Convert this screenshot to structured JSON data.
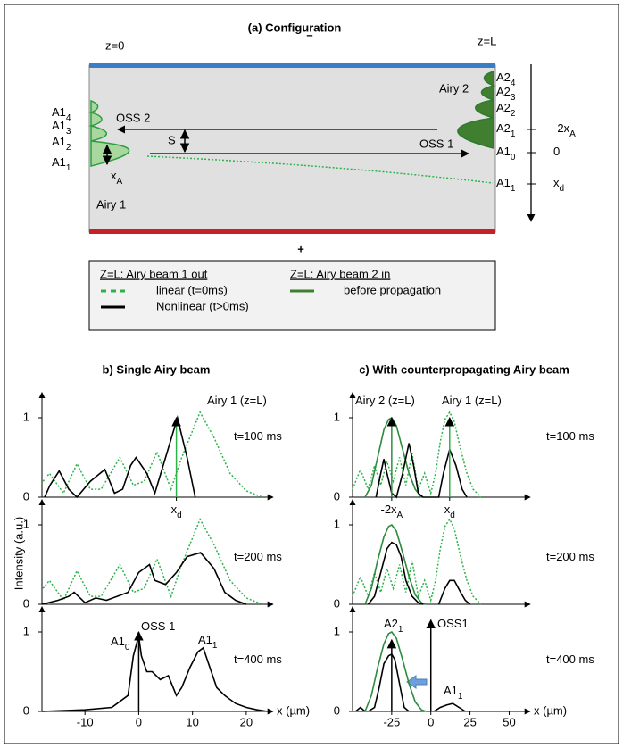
{
  "configuration": {
    "title": "(a)  Configuration",
    "z0": "z=0",
    "zL": "z=L",
    "minus": "–",
    "plus": "+",
    "airy1": "Airy 1",
    "airy2": "Airy 2",
    "oss1": "OSS 1",
    "oss2": "OSS 2",
    "s": "S",
    "xa": {
      "base": "x",
      "sub": "A"
    },
    "left_labels": [
      {
        "base": "A1",
        "sub": "4"
      },
      {
        "base": "A1",
        "sub": "3"
      },
      {
        "base": "A1",
        "sub": "2"
      },
      {
        "base": "A1",
        "sub": "1"
      }
    ],
    "right_labels": [
      {
        "base": "A2",
        "sub": "4"
      },
      {
        "base": "A2",
        "sub": "3"
      },
      {
        "base": "A2",
        "sub": "2"
      },
      {
        "base": "A2",
        "sub": "1"
      },
      {
        "base": "A1",
        "sub": "0"
      },
      {
        "base": "A1",
        "sub": "1"
      }
    ],
    "axis_labels": [
      {
        "base": "-2x",
        "sub": "A"
      },
      {
        "base": "0"
      },
      {
        "base": "x",
        "sub": "d"
      }
    ]
  },
  "legend": {
    "headers": [
      "Z=L:  Airy beam 1 out",
      "Z=L:  Airy beam 2 in"
    ],
    "entries": [
      {
        "label": "linear (t=0ms)",
        "color": "#2bb34a",
        "style": "dashed"
      },
      {
        "label": "Nonlinear (t>0ms)",
        "color": "#000000",
        "style": "solid"
      },
      {
        "label": "before propagation",
        "color": "#3f7f2f",
        "style": "solid"
      }
    ]
  },
  "y_label": "Intensity (a.u.)",
  "chart_data": [
    {
      "type": "line",
      "title": "b) Single Airy beam",
      "xlim": [
        -18,
        24
      ],
      "ylim": [
        0,
        1.25
      ],
      "yticks": [
        0,
        1
      ],
      "xticks": [
        {
          "value": 7,
          "label": {
            "base": "x",
            "sub": "d"
          }
        }
      ],
      "annotations": [
        {
          "base": "t=100 ms"
        },
        {
          "base": "Airy 1 (z=L)",
          "color": "#2bb34a"
        }
      ],
      "arrows": [
        {
          "x": 7,
          "y": 1.0,
          "color": "#2bb34a"
        }
      ],
      "series": [
        {
          "color": "#2bb34a",
          "style": "dotted",
          "x": [
            -17.8,
            -16.6,
            -14,
            -11.5,
            -9,
            -7,
            -3.5,
            -1,
            1,
            3.4,
            6,
            8,
            11.4,
            14,
            17,
            20,
            23
          ],
          "values": [
            0.2,
            0.3,
            0.05,
            0.42,
            0.1,
            0.1,
            0.5,
            0.15,
            0.2,
            0.57,
            0.1,
            0.5,
            1.07,
            0.75,
            0.3,
            0.08,
            0
          ]
        },
        {
          "color": "#000000",
          "style": "solid",
          "x": [
            -17.5,
            -16.5,
            -14.8,
            -13,
            -11.5,
            -9,
            -6.3,
            -4.5,
            -3,
            -1.5,
            -0.5,
            1.5,
            3,
            5,
            7.2,
            9,
            10.5
          ],
          "values": [
            0,
            0.15,
            0.33,
            0.1,
            0,
            0.2,
            0.35,
            0.05,
            0.1,
            0.4,
            0.5,
            0.3,
            0.05,
            0.5,
            1.0,
            0.5,
            0
          ]
        }
      ]
    },
    {
      "type": "line",
      "xlim": [
        -18,
        24
      ],
      "ylim": [
        0,
        1.25
      ],
      "yticks": [
        0,
        1
      ],
      "annotations": [
        {
          "base": "t=200 ms"
        }
      ],
      "series": [
        {
          "color": "#2bb34a",
          "style": "dotted",
          "x": [
            -17.8,
            -16.6,
            -14,
            -11.5,
            -9,
            -7,
            -3.5,
            -1,
            1,
            3.4,
            6,
            8,
            11.4,
            14,
            17,
            20,
            23
          ],
          "values": [
            0.2,
            0.3,
            0.05,
            0.42,
            0.1,
            0.1,
            0.5,
            0.15,
            0.2,
            0.57,
            0.1,
            0.5,
            1.07,
            0.75,
            0.3,
            0.08,
            0
          ]
        },
        {
          "color": "#000000",
          "style": "solid",
          "x": [
            -18,
            -15,
            -13,
            -12,
            -10,
            -8,
            -6,
            -4,
            -2,
            0,
            2,
            3,
            5,
            7,
            9,
            11.5,
            14,
            16,
            18,
            20
          ],
          "values": [
            0,
            0.05,
            0.1,
            0.15,
            0.02,
            0.08,
            0.05,
            0.1,
            0.15,
            0.4,
            0.5,
            0.3,
            0.25,
            0.4,
            0.6,
            0.65,
            0.45,
            0.15,
            0.05,
            0
          ]
        }
      ]
    },
    {
      "type": "line",
      "xlim": [
        -18,
        24
      ],
      "ylim": [
        0,
        1.25
      ],
      "yticks": [
        0,
        1
      ],
      "xticks": [
        -10,
        0,
        10,
        20
      ],
      "xlabel": "x (µm)",
      "annotations": [
        {
          "base": "t=400 ms"
        },
        {
          "base": "OSS 1"
        },
        {
          "base": "A1",
          "sub": "0"
        },
        {
          "base": "A1",
          "sub": "1"
        }
      ],
      "arrows": [
        {
          "x": 0,
          "y": 1.0,
          "color": "#000000"
        }
      ],
      "series": [
        {
          "color": "#000000",
          "style": "solid",
          "x": [
            -18,
            -10,
            -5,
            -2,
            -1,
            0,
            0.5,
            1.5,
            2.5,
            4,
            5.5,
            7,
            8,
            9.5,
            11,
            12,
            13,
            14.5,
            16,
            18,
            20,
            22,
            24
          ],
          "values": [
            0,
            0.02,
            0.05,
            0.2,
            0.7,
            0.95,
            0.7,
            0.5,
            0.5,
            0.4,
            0.45,
            0.2,
            0.3,
            0.55,
            0.75,
            0.8,
            0.6,
            0.3,
            0.2,
            0.1,
            0.05,
            0.02,
            0
          ]
        }
      ]
    },
    {
      "type": "line",
      "title": "c) With counterpropagating Airy beam",
      "xlim": [
        -50,
        60
      ],
      "ylim": [
        0,
        1.25
      ],
      "yticks": [
        0,
        1
      ],
      "xticks": [
        {
          "value": -25,
          "label": {
            "base": "-2x",
            "sub": "A"
          }
        },
        {
          "value": 12,
          "label": {
            "base": "x",
            "sub": "d"
          }
        }
      ],
      "annotations": [
        {
          "base": "t=100 ms"
        },
        {
          "base": "Airy 2 (z=L)",
          "color": "#2e8b3e"
        },
        {
          "base": "Airy 1 (z=L)",
          "color": "#2bb34a"
        }
      ],
      "arrows": [
        {
          "x": -25,
          "y": 1.0,
          "color": "#2e8b3e"
        },
        {
          "x": 12,
          "y": 1.0,
          "color": "#2bb34a"
        }
      ],
      "series": [
        {
          "color": "#2bb34a",
          "style": "dotted",
          "x": [
            -50,
            -45,
            -40,
            -36,
            -32,
            -28,
            -24,
            -20,
            -16,
            -12,
            -8,
            -4,
            0,
            3,
            6,
            9,
            12,
            15,
            19,
            23,
            27,
            32
          ],
          "values": [
            0.1,
            0.35,
            0.1,
            0.4,
            0.15,
            0.45,
            0.2,
            0.5,
            0.15,
            0.55,
            0.1,
            0.3,
            0.05,
            0.3,
            0.7,
            0.98,
            1.07,
            0.95,
            0.6,
            0.3,
            0.1,
            0
          ]
        },
        {
          "color": "#2e8b3e",
          "style": "solid",
          "x": [
            -42,
            -38,
            -34,
            -30,
            -27,
            -25,
            -22,
            -18,
            -14,
            -10,
            -6
          ],
          "values": [
            0,
            0.15,
            0.5,
            0.85,
            0.98,
            1.0,
            0.9,
            0.6,
            0.3,
            0.1,
            0
          ]
        },
        {
          "color": "#000000",
          "style": "solid",
          "x": [
            -35,
            -32,
            -30,
            -28,
            -25,
            -22,
            -18,
            -14,
            -11,
            -8,
            -5,
            0,
            5,
            8,
            12,
            16,
            20,
            23
          ],
          "values": [
            0,
            0.3,
            0.48,
            0.3,
            0.05,
            0,
            0.3,
            0.68,
            0.4,
            0.05,
            0,
            0,
            0,
            0.3,
            0.6,
            0.4,
            0.1,
            0
          ]
        }
      ]
    },
    {
      "type": "line",
      "xlim": [
        -50,
        60
      ],
      "ylim": [
        0,
        1.25
      ],
      "yticks": [
        0,
        1
      ],
      "annotations": [
        {
          "base": "t=200 ms"
        }
      ],
      "series": [
        {
          "color": "#2bb34a",
          "style": "dotted",
          "x": [
            -50,
            -45,
            -40,
            -36,
            -32,
            -28,
            -24,
            -20,
            -16,
            -12,
            -8,
            -4,
            0,
            3,
            6,
            9,
            12,
            15,
            19,
            23,
            27,
            32
          ],
          "values": [
            0.1,
            0.35,
            0.1,
            0.4,
            0.15,
            0.45,
            0.2,
            0.5,
            0.15,
            0.55,
            0.1,
            0.3,
            0.05,
            0.3,
            0.7,
            0.98,
            1.07,
            0.95,
            0.6,
            0.3,
            0.1,
            0
          ]
        },
        {
          "color": "#2e8b3e",
          "style": "solid",
          "x": [
            -42,
            -38,
            -34,
            -30,
            -27,
            -25,
            -22,
            -18,
            -14,
            -10,
            -6,
            -3
          ],
          "values": [
            0,
            0.2,
            0.55,
            0.85,
            0.98,
            1.0,
            0.92,
            0.65,
            0.35,
            0.12,
            0.02,
            0
          ]
        },
        {
          "color": "#000000",
          "style": "solid",
          "x": [
            -40,
            -36,
            -32,
            -28,
            -25,
            -22,
            -19,
            -16,
            -12,
            -8,
            -5,
            null,
            5,
            9,
            12,
            15,
            19,
            22,
            25
          ],
          "values": [
            0,
            0.1,
            0.4,
            0.7,
            0.78,
            0.75,
            0.6,
            0.3,
            0.1,
            0.02,
            0,
            null,
            0,
            0.2,
            0.3,
            0.3,
            0.15,
            0.05,
            0
          ]
        }
      ]
    },
    {
      "type": "line",
      "xlim": [
        -50,
        60
      ],
      "ylim": [
        0,
        1.25
      ],
      "yticks": [
        0,
        1
      ],
      "xticks": [
        -25,
        0,
        25,
        50
      ],
      "xlabel": "x (µm)",
      "annotations": [
        {
          "base": "t=400 ms"
        },
        {
          "base": "A2",
          "sub": "1"
        },
        {
          "base": "OSS1"
        },
        {
          "base": "A1",
          "sub": "1"
        }
      ],
      "arrows": [
        {
          "x": -25,
          "y": 0.9,
          "color": "#000000"
        },
        {
          "x": 0,
          "y": 1.15,
          "color": "#000000"
        }
      ],
      "series": [
        {
          "color": "#2e8b3e",
          "style": "solid",
          "x": [
            -42,
            -38,
            -34,
            -30,
            -27,
            -25,
            -22,
            -18,
            -14,
            -10,
            -6,
            -3
          ],
          "values": [
            0,
            0.2,
            0.55,
            0.85,
            0.98,
            1.0,
            0.92,
            0.65,
            0.35,
            0.12,
            0.02,
            0
          ]
        },
        {
          "color": "#000000",
          "style": "solid",
          "x": [
            -48,
            -45,
            -42,
            null,
            -40,
            -36,
            -33,
            -30,
            -27,
            -25,
            -23,
            -20,
            -17,
            -14,
            null,
            2,
            6,
            10,
            14,
            18,
            22
          ],
          "values": [
            0,
            0.05,
            0,
            null,
            0,
            0.05,
            0.3,
            0.6,
            0.7,
            0.72,
            0.65,
            0.35,
            0.05,
            0,
            null,
            0,
            0.05,
            0.08,
            0.1,
            0.05,
            0
          ]
        }
      ]
    }
  ]
}
